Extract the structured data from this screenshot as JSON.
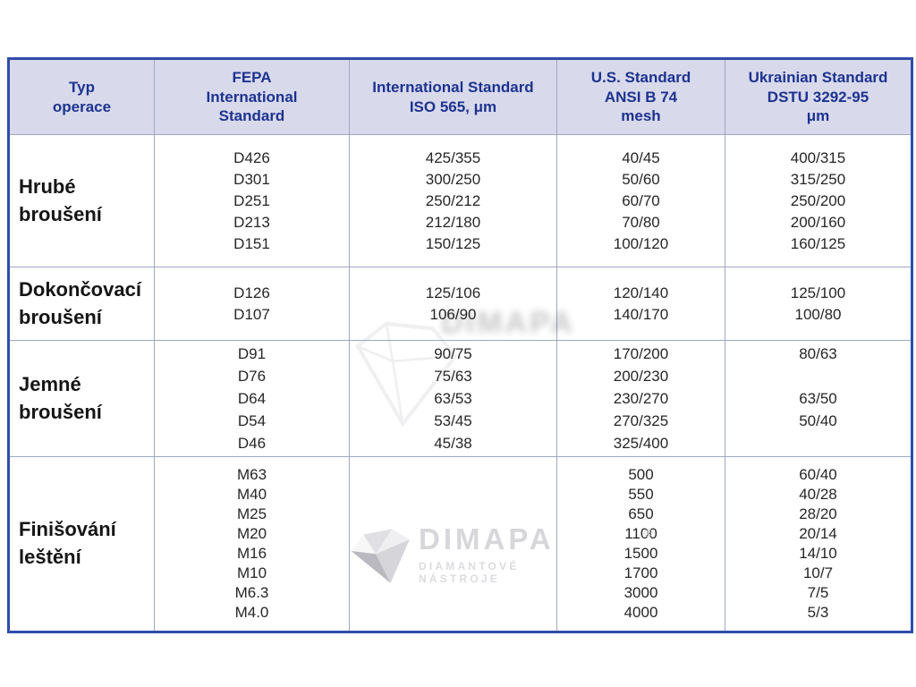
{
  "table": {
    "headers": [
      "Typ\noperace",
      "FEPA\nInternational\nStandard",
      "International Standard\nISO 565, μm",
      "U.S. Standard\nANSI B 74\nmesh",
      "Ukrainian Standard\nDSTU 3292-95\nμm"
    ],
    "rows": [
      {
        "label": "Hrubé\nbroušení",
        "fepa": [
          "D426",
          "D301",
          "D251",
          "D213",
          "D151"
        ],
        "iso": [
          "425/355",
          "300/250",
          "250/212",
          "212/180",
          "150/125"
        ],
        "us": [
          "40/45",
          "50/60",
          "60/70",
          "70/80",
          "100/120"
        ],
        "ua": [
          "400/315",
          "315/250",
          "250/200",
          "200/160",
          "160/125"
        ]
      },
      {
        "label": "Dokončovací\nbroušení",
        "fepa": [
          "D126",
          "D107"
        ],
        "iso": [
          "125/106",
          "106/90"
        ],
        "us": [
          "120/140",
          "140/170"
        ],
        "ua": [
          "125/100",
          "100/80"
        ]
      },
      {
        "label": "Jemné\nbroušení",
        "fepa": [
          "D91",
          "D76",
          "D64",
          "D54",
          "D46"
        ],
        "iso": [
          "90/75",
          "75/63",
          "63/53",
          "53/45",
          "45/38"
        ],
        "us": [
          "170/200",
          "200/230",
          "230/270",
          "270/325",
          "325/400"
        ],
        "ua": [
          "80/63",
          "",
          "63/50",
          "50/40",
          ""
        ]
      },
      {
        "label": "Finišování\nleštění",
        "fepa": [
          "M63",
          "M40",
          "M25",
          "M20",
          "M16",
          "M10",
          "M6.3",
          "M4.0"
        ],
        "iso": [],
        "us": [
          "500",
          "550",
          "650",
          "1100",
          "1500",
          "1700",
          "3000",
          "4000"
        ],
        "ua": [
          "60/40",
          "40/28",
          "28/20",
          "20/14",
          "14/10",
          "10/7",
          "7/5",
          "5/3"
        ]
      }
    ]
  },
  "watermark": {
    "brand": "DIMAPA",
    "registered": "®",
    "tagline": "DIAMANTOVÉ NÁSTROJE"
  },
  "colors": {
    "border": "#2f4da8",
    "header_bg": "#d9d9ec",
    "header_text": "#1c338f",
    "grid_line": "#9fa8bf",
    "body_text": "#262626"
  }
}
